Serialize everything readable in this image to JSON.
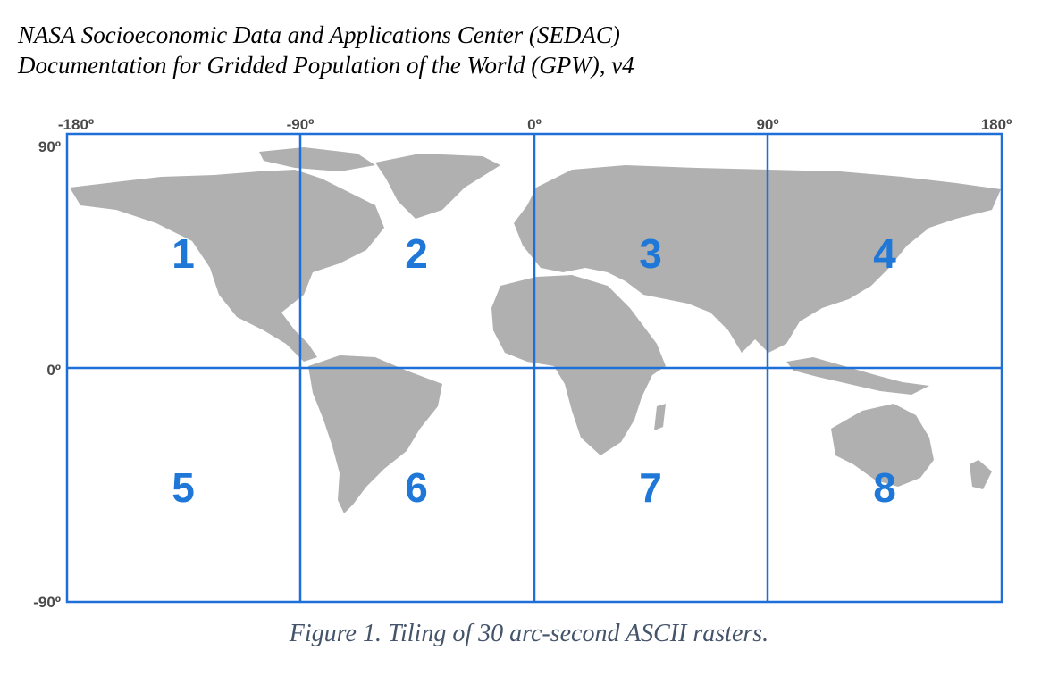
{
  "header": {
    "line1": "NASA Socioeconomic Data and Applications Center (SEDAC)",
    "line2": "Documentation for Gridded Population of the World (GPW), v4"
  },
  "map": {
    "longitude_labels": [
      "-180º",
      "-90º",
      "0º",
      "90º",
      "180º"
    ],
    "latitude_labels": [
      "90º",
      "0º",
      "-90º"
    ],
    "tiles": [
      "1",
      "2",
      "3",
      "4",
      "5",
      "6",
      "7",
      "8"
    ],
    "colors": {
      "grid": "#1f6fd8",
      "land": "#b0b0b0",
      "tile_label": "#1f78d8"
    }
  },
  "caption": "Figure 1. Tiling of 30 arc-second ASCII rasters."
}
